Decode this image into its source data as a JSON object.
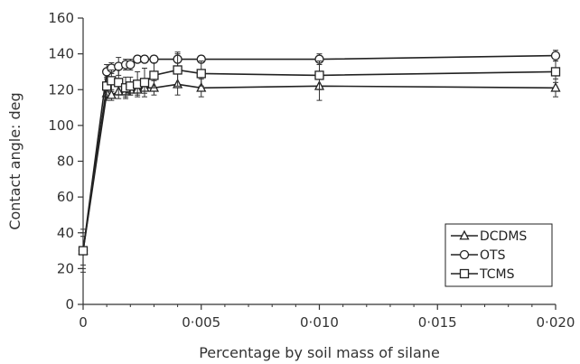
{
  "chart_data": {
    "type": "line",
    "xlabel": "Percentage by soil mass of silane",
    "ylabel": "Contact angle: deg",
    "xlim": [
      0,
      0.02
    ],
    "ylim": [
      0,
      160
    ],
    "x_ticks": [
      {
        "value": 0,
        "label": "0"
      },
      {
        "value": 0.005,
        "label": "0·005"
      },
      {
        "value": 0.01,
        "label": "0·010"
      },
      {
        "value": 0.015,
        "label": "0·015"
      },
      {
        "value": 0.02,
        "label": "0·020"
      }
    ],
    "y_ticks": [
      0,
      20,
      40,
      60,
      80,
      100,
      120,
      140,
      160
    ],
    "grid": false,
    "legend_position": "bottom-right",
    "series": [
      {
        "name": "DCDMS",
        "marker": "triangle",
        "points": [
          {
            "x": 0,
            "y": 30,
            "err": 12
          },
          {
            "x": 0.001,
            "y": 118,
            "err": 4
          },
          {
            "x": 0.0012,
            "y": 117,
            "err": 3
          },
          {
            "x": 0.0015,
            "y": 119,
            "err": 4
          },
          {
            "x": 0.0018,
            "y": 119,
            "err": 3
          },
          {
            "x": 0.002,
            "y": 120,
            "err": 3
          },
          {
            "x": 0.0023,
            "y": 120,
            "err": 3
          },
          {
            "x": 0.0026,
            "y": 121,
            "err": 3
          },
          {
            "x": 0.003,
            "y": 121,
            "err": 4
          },
          {
            "x": 0.004,
            "y": 123,
            "err": 6
          },
          {
            "x": 0.005,
            "y": 121,
            "err": 5
          },
          {
            "x": 0.01,
            "y": 122,
            "err": 8
          },
          {
            "x": 0.02,
            "y": 121,
            "err": 5
          }
        ]
      },
      {
        "name": "OTS",
        "marker": "circle",
        "points": [
          {
            "x": 0,
            "y": 30,
            "err": 8
          },
          {
            "x": 0.001,
            "y": 130,
            "err": 4
          },
          {
            "x": 0.0012,
            "y": 132,
            "err": 3
          },
          {
            "x": 0.0015,
            "y": 133,
            "err": 5
          },
          {
            "x": 0.0018,
            "y": 134,
            "err": 3
          },
          {
            "x": 0.002,
            "y": 134,
            "err": 3
          },
          {
            "x": 0.0023,
            "y": 137,
            "err": 2
          },
          {
            "x": 0.0026,
            "y": 137,
            "err": 2
          },
          {
            "x": 0.003,
            "y": 137,
            "err": 2
          },
          {
            "x": 0.004,
            "y": 137,
            "err": 4
          },
          {
            "x": 0.005,
            "y": 137,
            "err": 2
          },
          {
            "x": 0.01,
            "y": 137,
            "err": 3
          },
          {
            "x": 0.02,
            "y": 139,
            "err": 3
          }
        ]
      },
      {
        "name": "TCMS",
        "marker": "square",
        "points": [
          {
            "x": 0,
            "y": 30,
            "err": 10
          },
          {
            "x": 0.001,
            "y": 122,
            "err": 5
          },
          {
            "x": 0.0012,
            "y": 125,
            "err": 6
          },
          {
            "x": 0.0015,
            "y": 124,
            "err": 7
          },
          {
            "x": 0.0018,
            "y": 121,
            "err": 6
          },
          {
            "x": 0.002,
            "y": 122,
            "err": 5
          },
          {
            "x": 0.0023,
            "y": 123,
            "err": 7
          },
          {
            "x": 0.0026,
            "y": 124,
            "err": 8
          },
          {
            "x": 0.003,
            "y": 128,
            "err": 7
          },
          {
            "x": 0.004,
            "y": 131,
            "err": 9
          },
          {
            "x": 0.005,
            "y": 129,
            "err": 7
          },
          {
            "x": 0.01,
            "y": 128,
            "err": 8
          },
          {
            "x": 0.02,
            "y": 130,
            "err": 6
          }
        ]
      }
    ]
  }
}
